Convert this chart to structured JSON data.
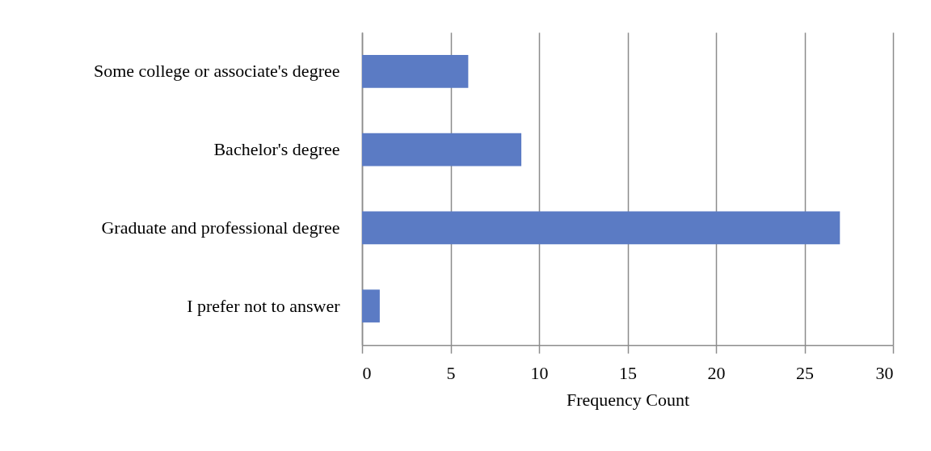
{
  "chart_data": {
    "type": "bar",
    "orientation": "horizontal",
    "categories": [
      "Some college or associate's degree",
      "Bachelor's degree",
      "Graduate and professional degree",
      "I prefer not to answer"
    ],
    "values": [
      6,
      9,
      27,
      1
    ],
    "color": "#5b7bc4",
    "xlabel": "Frequency Count",
    "xlim": [
      0,
      30
    ],
    "xticks": [
      0,
      5,
      10,
      15,
      20,
      25,
      30
    ],
    "grid": "x"
  }
}
